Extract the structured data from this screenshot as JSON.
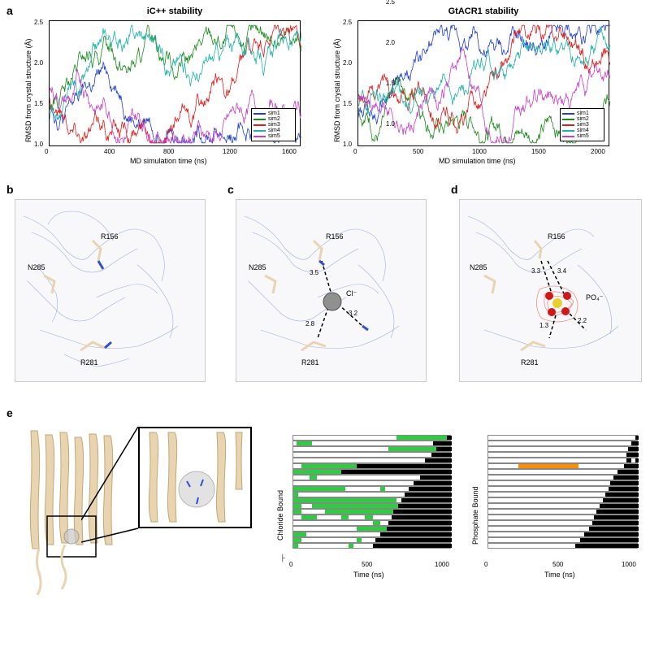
{
  "panels": {
    "a": "a",
    "b": "b",
    "c": "c",
    "d": "d",
    "e": "e"
  },
  "chart_left": {
    "title": "iC++ stability",
    "ylabel": "RMSD from crystal structure (Å)",
    "xlabel": "MD simulation time (ns)",
    "ylim": [
      1.0,
      2.5
    ],
    "yticks": [
      "1.0",
      "1.5",
      "2.0",
      "2.5"
    ],
    "xticks": [
      "0",
      "400",
      "800",
      "1200",
      "1600"
    ],
    "series": [
      {
        "label": "sim1",
        "color": "#1f3fd4"
      },
      {
        "label": "sim2",
        "color": "#1a8b1a"
      },
      {
        "label": "sim3",
        "color": "#e31b1b"
      },
      {
        "label": "sim4",
        "color": "#20b2aa"
      },
      {
        "label": "sim5",
        "color": "#c840c8"
      }
    ]
  },
  "chart_right": {
    "title": "GtACR1 stability",
    "ylabel": "RMSD from crystal structure (Å)",
    "xlabel": "MD simulation time (ns)",
    "ylim": [
      1.0,
      2.5
    ],
    "yticks": [
      "1.0",
      "1.5",
      "2.0",
      "2.5"
    ],
    "xticks": [
      "0",
      "500",
      "1000",
      "1500",
      "2000"
    ],
    "series": [
      {
        "label": "sim1",
        "color": "#1f3fd4"
      },
      {
        "label": "sim2",
        "color": "#1a8b1a"
      },
      {
        "label": "sim3",
        "color": "#e31b1b"
      },
      {
        "label": "sim4",
        "color": "#20b2aa"
      },
      {
        "label": "sim5",
        "color": "#c840c8"
      }
    ]
  },
  "panel_b": {
    "residues": [
      "R156",
      "N285",
      "R281"
    ]
  },
  "panel_c": {
    "residues": [
      "R156",
      "N285",
      "R281"
    ],
    "ion": "Cl⁻",
    "distances": [
      "3.5",
      "3.2",
      "2.8"
    ]
  },
  "panel_d": {
    "residues": [
      "R156",
      "N285",
      "R281"
    ],
    "ion": "PO₄⁻",
    "distances": [
      "3.3",
      "3.4",
      "1.3",
      "2.2"
    ]
  },
  "panel_e": {
    "chloride_title": "Chloride Bound",
    "phosphate_title": "Phosphate Bound",
    "xlabel": "Time (ns)",
    "xticks": [
      "0",
      "500",
      "1000"
    ],
    "chloride_color": "#2ecc40",
    "phosphate_color": "#ff8c00",
    "black_color": "#000000",
    "chloride_rows": [
      [
        {
          "start": 0.65,
          "end": 0.97,
          "c": "g"
        },
        {
          "start": 0.97,
          "end": 1.0,
          "c": "k"
        }
      ],
      [
        {
          "start": 0.02,
          "end": 0.12,
          "c": "g"
        },
        {
          "start": 0.88,
          "end": 1.0,
          "c": "k"
        }
      ],
      [
        {
          "start": 0.6,
          "end": 0.9,
          "c": "g"
        },
        {
          "start": 0.9,
          "end": 1.0,
          "c": "k"
        }
      ],
      [
        {
          "start": 0.87,
          "end": 1.0,
          "c": "k"
        }
      ],
      [
        {
          "start": 0.83,
          "end": 1.0,
          "c": "k"
        }
      ],
      [
        {
          "start": 0.05,
          "end": 0.4,
          "c": "g"
        },
        {
          "start": 0.4,
          "end": 1.0,
          "c": "k"
        }
      ],
      [
        {
          "start": 0.0,
          "end": 0.3,
          "c": "g"
        },
        {
          "start": 0.3,
          "end": 1.0,
          "c": "k"
        }
      ],
      [
        {
          "start": 0.1,
          "end": 0.15,
          "c": "g"
        },
        {
          "start": 0.8,
          "end": 1.0,
          "c": "k"
        }
      ],
      [
        {
          "start": 0.76,
          "end": 1.0,
          "c": "k"
        }
      ],
      [
        {
          "start": 0.0,
          "end": 0.33,
          "c": "g"
        },
        {
          "start": 0.55,
          "end": 0.58,
          "c": "g"
        },
        {
          "start": 0.73,
          "end": 1.0,
          "c": "k"
        }
      ],
      [
        {
          "start": 0.0,
          "end": 0.03,
          "c": "g"
        },
        {
          "start": 0.7,
          "end": 1.0,
          "c": "k"
        }
      ],
      [
        {
          "start": 0.0,
          "end": 0.5,
          "c": "g"
        },
        {
          "start": 0.5,
          "end": 0.65,
          "c": "g"
        },
        {
          "start": 0.68,
          "end": 1.0,
          "c": "k"
        }
      ],
      [
        {
          "start": 0.0,
          "end": 0.05,
          "c": "g"
        },
        {
          "start": 0.12,
          "end": 0.66,
          "c": "g"
        },
        {
          "start": 0.66,
          "end": 1.0,
          "c": "k"
        }
      ],
      [
        {
          "start": 0.0,
          "end": 0.05,
          "c": "g"
        },
        {
          "start": 0.2,
          "end": 0.63,
          "c": "g"
        },
        {
          "start": 0.63,
          "end": 1.0,
          "c": "k"
        }
      ],
      [
        {
          "start": 0.05,
          "end": 0.15,
          "c": "g"
        },
        {
          "start": 0.3,
          "end": 0.35,
          "c": "g"
        },
        {
          "start": 0.45,
          "end": 0.5,
          "c": "g"
        },
        {
          "start": 0.62,
          "end": 1.0,
          "c": "k"
        }
      ],
      [
        {
          "start": 0.5,
          "end": 0.55,
          "c": "g"
        },
        {
          "start": 0.6,
          "end": 1.0,
          "c": "k"
        }
      ],
      [
        {
          "start": 0.4,
          "end": 0.59,
          "c": "g"
        },
        {
          "start": 0.59,
          "end": 1.0,
          "c": "k"
        }
      ],
      [
        {
          "start": 0.0,
          "end": 0.08,
          "c": "g"
        },
        {
          "start": 0.55,
          "end": 1.0,
          "c": "k"
        }
      ],
      [
        {
          "start": 0.0,
          "end": 0.05,
          "c": "g"
        },
        {
          "start": 0.4,
          "end": 0.43,
          "c": "g"
        },
        {
          "start": 0.52,
          "end": 1.0,
          "c": "k"
        }
      ],
      [
        {
          "start": 0.0,
          "end": 0.03,
          "c": "g"
        },
        {
          "start": 0.35,
          "end": 0.38,
          "c": "g"
        },
        {
          "start": 0.5,
          "end": 1.0,
          "c": "k"
        }
      ]
    ],
    "phosphate_rows": [
      [
        {
          "start": 0.98,
          "end": 1.0,
          "c": "k"
        }
      ],
      [
        {
          "start": 0.95,
          "end": 1.0,
          "c": "k"
        }
      ],
      [
        {
          "start": 0.93,
          "end": 1.0,
          "c": "k"
        }
      ],
      [
        {
          "start": 0.92,
          "end": 1.0,
          "c": "k"
        }
      ],
      [
        {
          "start": 0.92,
          "end": 0.95,
          "c": "k"
        },
        {
          "start": 0.98,
          "end": 1.0,
          "c": "k"
        }
      ],
      [
        {
          "start": 0.2,
          "end": 0.6,
          "c": "o"
        },
        {
          "start": 0.9,
          "end": 1.0,
          "c": "k"
        }
      ],
      [
        {
          "start": 0.86,
          "end": 1.0,
          "c": "k"
        }
      ],
      [
        {
          "start": 0.83,
          "end": 1.0,
          "c": "k"
        }
      ],
      [
        {
          "start": 0.81,
          "end": 1.0,
          "c": "k"
        }
      ],
      [
        {
          "start": 0.8,
          "end": 1.0,
          "c": "k"
        }
      ],
      [
        {
          "start": 0.78,
          "end": 1.0,
          "c": "k"
        }
      ],
      [
        {
          "start": 0.76,
          "end": 1.0,
          "c": "k"
        }
      ],
      [
        {
          "start": 0.74,
          "end": 1.0,
          "c": "k"
        }
      ],
      [
        {
          "start": 0.72,
          "end": 1.0,
          "c": "k"
        }
      ],
      [
        {
          "start": 0.7,
          "end": 1.0,
          "c": "k"
        }
      ],
      [
        {
          "start": 0.69,
          "end": 1.0,
          "c": "k"
        }
      ],
      [
        {
          "start": 0.67,
          "end": 1.0,
          "c": "k"
        }
      ],
      [
        {
          "start": 0.64,
          "end": 1.0,
          "c": "k"
        }
      ],
      [
        {
          "start": 0.61,
          "end": 1.0,
          "c": "k"
        }
      ],
      [
        {
          "start": 0.58,
          "end": 1.0,
          "c": "k"
        }
      ]
    ]
  },
  "colors": {
    "mesh_blue": "#4060d0",
    "mesh_red": "#e85040",
    "protein": "#e8d4b0",
    "nitrogen": "#3050d0",
    "oxygen": "#d01818",
    "sulfur": "#e8d030",
    "chloride": "#909090"
  }
}
